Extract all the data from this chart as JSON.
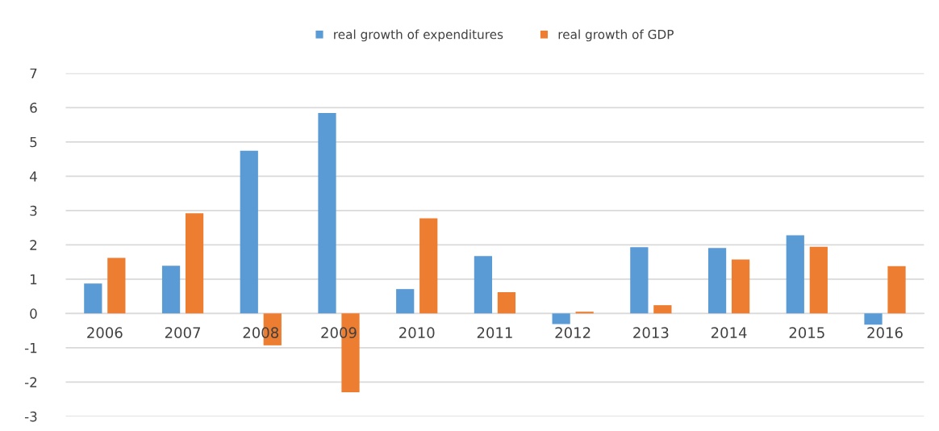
{
  "chart_data": {
    "type": "bar",
    "categories": [
      "2006",
      "2007",
      "2008",
      "2009",
      "2010",
      "2011",
      "2012",
      "2013",
      "2014",
      "2015",
      "2016"
    ],
    "series": [
      {
        "name": "real growth of expenditures",
        "color": "#5b9bd5",
        "values": [
          0.87,
          1.39,
          4.74,
          5.84,
          0.71,
          1.67,
          -0.31,
          1.93,
          1.91,
          2.28,
          -0.33
        ]
      },
      {
        "name": "real growth of GDP",
        "color": "#ed7d31",
        "values": [
          1.62,
          2.92,
          -0.93,
          -2.3,
          2.77,
          0.62,
          0.05,
          0.24,
          1.57,
          1.94,
          1.38
        ]
      }
    ],
    "ylim": [
      -3,
      7
    ],
    "yticks": [
      -3,
      -2,
      -1,
      0,
      1,
      2,
      3,
      4,
      5,
      6,
      7
    ],
    "grid": "y",
    "legend": "top"
  }
}
